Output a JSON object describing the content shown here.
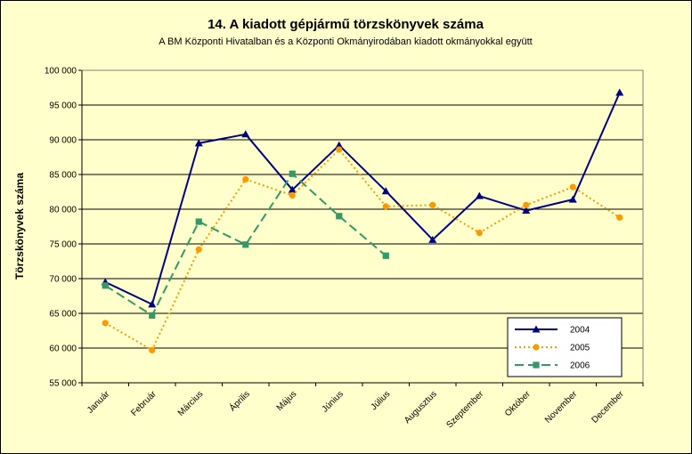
{
  "chart_data": {
    "type": "line",
    "title": "14. A kiadott gépjármű törzskönyvek száma",
    "subtitle": "A BM Központi Hivatalban és a Központi Okmányirodában kiadott okmányokkal együtt",
    "xlabel": "",
    "ylabel": "Törzskönyvek száma",
    "ylim": [
      55000,
      100000
    ],
    "yticks": [
      55000,
      60000,
      65000,
      70000,
      75000,
      80000,
      85000,
      90000,
      95000,
      100000
    ],
    "ytick_labels": [
      "55 000",
      "60 000",
      "65 000",
      "70 000",
      "75 000",
      "80 000",
      "85 000",
      "90 000",
      "95 000",
      "100 000"
    ],
    "grid": true,
    "legend_position": "bottom-right",
    "categories": [
      "Január",
      "Február",
      "Március",
      "Április",
      "Május",
      "Június",
      "Július",
      "Augusztus",
      "Szeptember",
      "Október",
      "November",
      "December"
    ],
    "series": [
      {
        "name": "2004",
        "color": "#000080",
        "marker": "triangle",
        "dash": "solid",
        "values": [
          69500,
          66300,
          89500,
          90800,
          82800,
          89200,
          82600,
          75600,
          81900,
          79800,
          81400,
          96800
        ]
      },
      {
        "name": "2005",
        "color": "#ff9900",
        "marker": "circle",
        "dash": "dotted",
        "values": [
          63600,
          59700,
          74200,
          84300,
          82000,
          88600,
          80400,
          80600,
          76600,
          80600,
          83200,
          78800
        ]
      },
      {
        "name": "2006",
        "color": "#339966",
        "marker": "square",
        "dash": "dashed",
        "values": [
          69000,
          64700,
          78200,
          74900,
          85100,
          79000,
          73300,
          null,
          null,
          null,
          null,
          null
        ]
      }
    ]
  }
}
